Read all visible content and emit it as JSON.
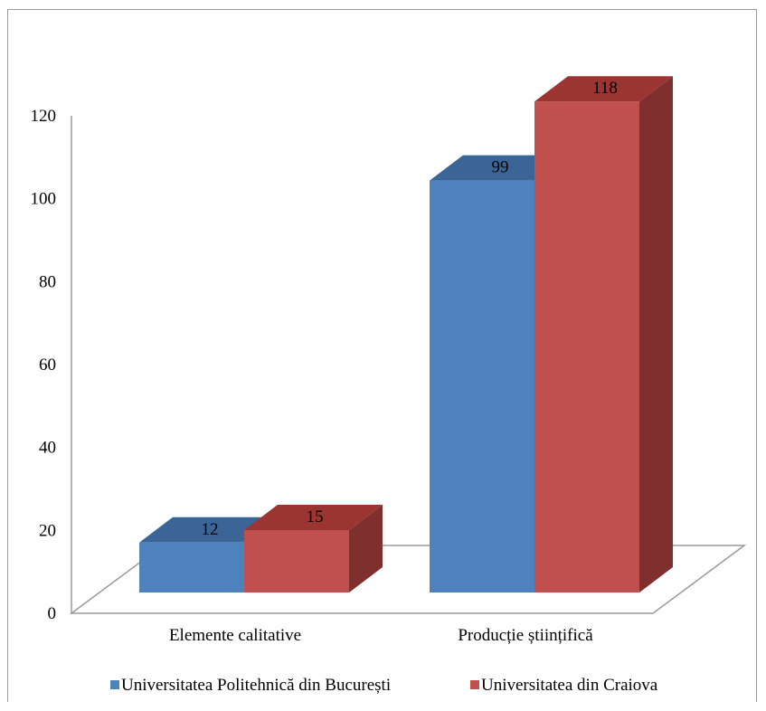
{
  "chart_data": {
    "type": "bar",
    "title": "",
    "xlabel": "",
    "ylabel": "",
    "ylim": [
      0,
      120
    ],
    "y_ticks": [
      "0",
      "20",
      "40",
      "60",
      "80",
      "100",
      "120"
    ],
    "categories": [
      "Elemente calitative",
      "Producție științifică"
    ],
    "series": [
      {
        "name": "Universitatea Politehnică din București",
        "values": [
          12,
          99
        ],
        "labels": [
          "12",
          "99"
        ],
        "color": "#4f81bd",
        "top_color": "#3a6596",
        "side_color": "#355f8e"
      },
      {
        "name": "Universitatea din Craiova",
        "values": [
          15,
          118
        ],
        "labels": [
          "15",
          "118"
        ],
        "color": "#c0504d",
        "top_color": "#9b3532",
        "side_color": "#7f302e"
      }
    ],
    "grid": false,
    "legend_position": "bottom",
    "three_d": true
  }
}
